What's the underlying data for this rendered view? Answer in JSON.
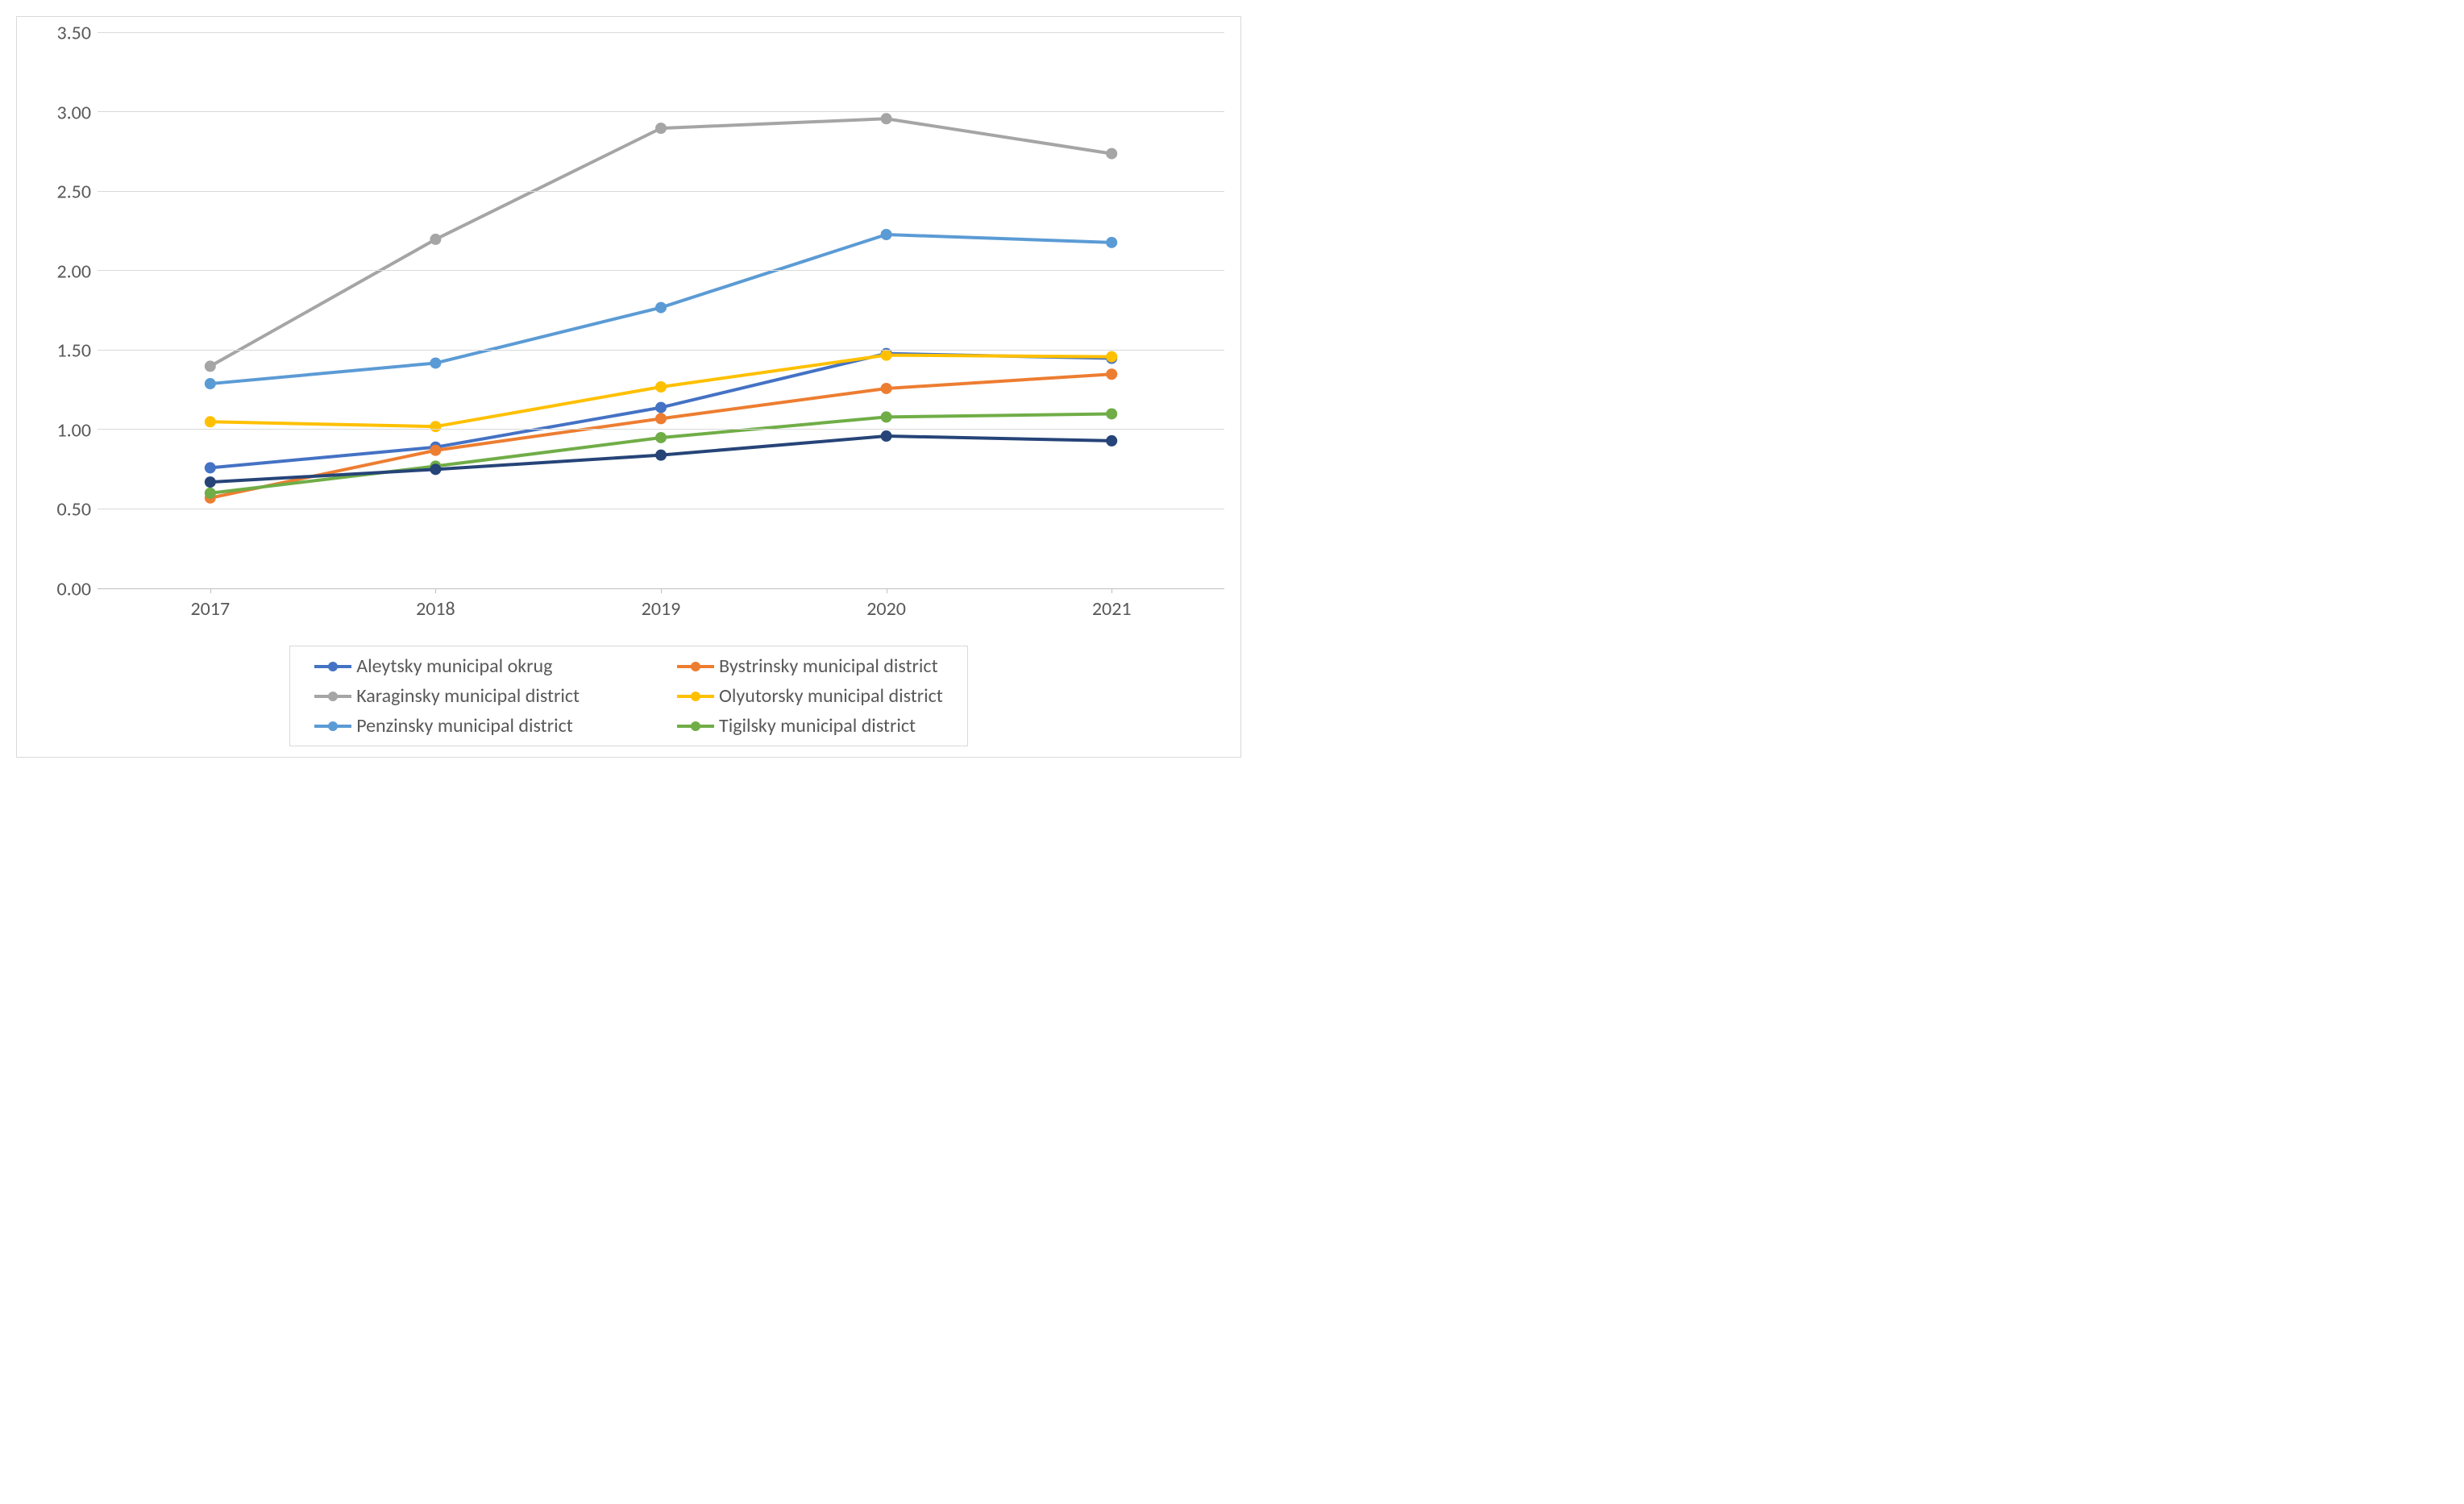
{
  "chart": {
    "type": "line",
    "background_color": "#ffffff",
    "border_color": "#d9d9d9",
    "grid_color": "#d9d9d9",
    "axis_line_color": "#bfbfbf",
    "tick_font_color": "#595959",
    "tick_font_size": 24,
    "line_width": 4,
    "marker_radius": 7,
    "categories": [
      "2017",
      "2018",
      "2019",
      "2020",
      "2021"
    ],
    "ylim": [
      0.0,
      3.5
    ],
    "ytick_step": 0.5,
    "ytick_labels": [
      "0.00",
      "0.50",
      "1.00",
      "1.50",
      "2.00",
      "2.50",
      "3.00",
      "3.50"
    ],
    "series": [
      {
        "name": "Aleytsky municipal okrug",
        "color": "#4472c4",
        "values": [
          0.76,
          0.89,
          1.14,
          1.48,
          1.45
        ]
      },
      {
        "name": "Bystrinsky municipal district",
        "color": "#ed7d31",
        "values": [
          0.57,
          0.87,
          1.07,
          1.26,
          1.35
        ]
      },
      {
        "name": "Karaginsky municipal district",
        "color": "#a5a5a5",
        "values": [
          1.4,
          2.2,
          2.9,
          2.96,
          2.74
        ]
      },
      {
        "name": "Olyutorsky municipal district",
        "color": "#ffc000",
        "values": [
          1.05,
          1.02,
          1.27,
          1.47,
          1.46
        ]
      },
      {
        "name": "Penzinsky municipal district",
        "color": "#5b9bd5",
        "values": [
          1.29,
          1.42,
          1.77,
          2.23,
          2.18
        ]
      },
      {
        "name": "Tigilsky municipal district",
        "color": "#70ad47",
        "values": [
          0.6,
          0.77,
          0.95,
          1.08,
          1.1
        ]
      },
      {
        "name": "__dark_navy__",
        "color": "#264478",
        "values": [
          0.67,
          0.75,
          0.84,
          0.96,
          0.93
        ],
        "legend": false
      }
    ],
    "legend": {
      "border_color": "#d9d9d9",
      "font_size": 24,
      "font_color": "#595959",
      "columns": 2
    }
  }
}
